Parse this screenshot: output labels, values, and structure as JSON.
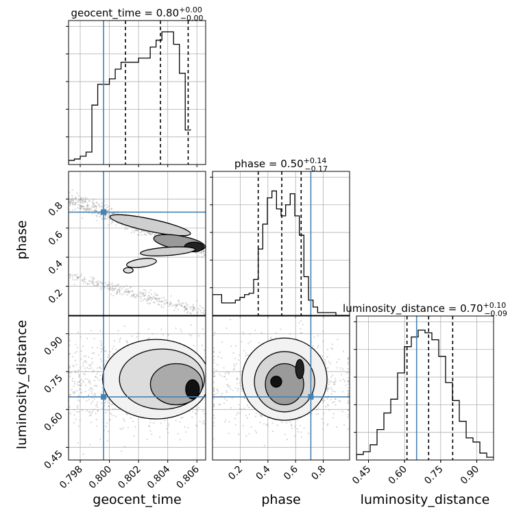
{
  "chart_data": {
    "type": "corner",
    "parameters": [
      {
        "key": "geocent_time",
        "label": "geocent_time",
        "range": [
          0.7972,
          0.8066
        ],
        "ticks": [
          0.798,
          0.8,
          0.802,
          0.804,
          0.806
        ],
        "tick_labels": [
          "0.798",
          "0.800",
          "0.802",
          "0.804",
          "0.806"
        ]
      },
      {
        "key": "phase",
        "label": "phase",
        "range": [
          0.0,
          0.99
        ],
        "ticks": [
          0.2,
          0.4,
          0.6,
          0.8
        ],
        "tick_labels": [
          "0.2",
          "0.4",
          "0.6",
          "0.8"
        ]
      },
      {
        "key": "luminosity_distance",
        "label": "luminosity_distance",
        "range": [
          0.4,
          0.97
        ],
        "ticks": [
          0.45,
          0.6,
          0.75,
          0.9
        ],
        "tick_labels": [
          "0.45",
          "0.60",
          "0.75",
          "0.90"
        ]
      }
    ],
    "titles": [
      {
        "name": "geocent_time",
        "median": "0.80",
        "plus": "+0.00",
        "minus": "−0.00"
      },
      {
        "name": "phase",
        "median": "0.50",
        "plus": "+0.14",
        "minus": "−0.17"
      },
      {
        "name": "luminosity_distance",
        "median": "0.70",
        "plus": "+0.10",
        "minus": "−0.09"
      }
    ],
    "truths": [
      0.7996,
      0.71,
      0.65
    ],
    "quantiles": [
      [
        0.8011,
        0.8035,
        0.8054
      ],
      [
        0.33,
        0.5,
        0.64
      ],
      [
        0.61,
        0.7,
        0.8
      ]
    ],
    "histograms": [
      {
        "bin_start": 0.7972,
        "bin_width": 0.0004,
        "counts": [
          0.03,
          0.04,
          0.06,
          0.09,
          0.43,
          0.58,
          0.58,
          0.62,
          0.69,
          0.74,
          0.74,
          0.74,
          0.77,
          0.77,
          0.85,
          0.9,
          0.96,
          0.96,
          0.87,
          0.66,
          0.25
        ]
      },
      {
        "bin_start": 0.0,
        "bin_width": 0.033,
        "counts": [
          0.15,
          0.15,
          0.09,
          0.09,
          0.09,
          0.11,
          0.13,
          0.15,
          0.16,
          0.26,
          0.48,
          0.66,
          0.85,
          0.9,
          0.77,
          0.72,
          0.8,
          0.88,
          0.72,
          0.58,
          0.28,
          0.11,
          0.06,
          0.02,
          0.02,
          0.02,
          0.02,
          0.0,
          0.0,
          0.0
        ]
      },
      {
        "bin_start": 0.4,
        "bin_width": 0.0285,
        "counts": [
          0.04,
          0.06,
          0.11,
          0.22,
          0.34,
          0.44,
          0.63,
          0.82,
          0.89,
          0.94,
          0.92,
          0.87,
          0.75,
          0.56,
          0.43,
          0.28,
          0.16,
          0.13,
          0.05,
          0.02
        ]
      }
    ],
    "axis_labels": {
      "x": [
        "geocent_time",
        "phase",
        "luminosity_distance"
      ],
      "y": [
        "phase",
        "luminosity_distance"
      ]
    },
    "grid": true,
    "colors": {
      "truth": "#4682b4",
      "hist": "#000000",
      "quantile": "#000000",
      "density": "#000000",
      "grid": "#b0b0b0"
    }
  }
}
